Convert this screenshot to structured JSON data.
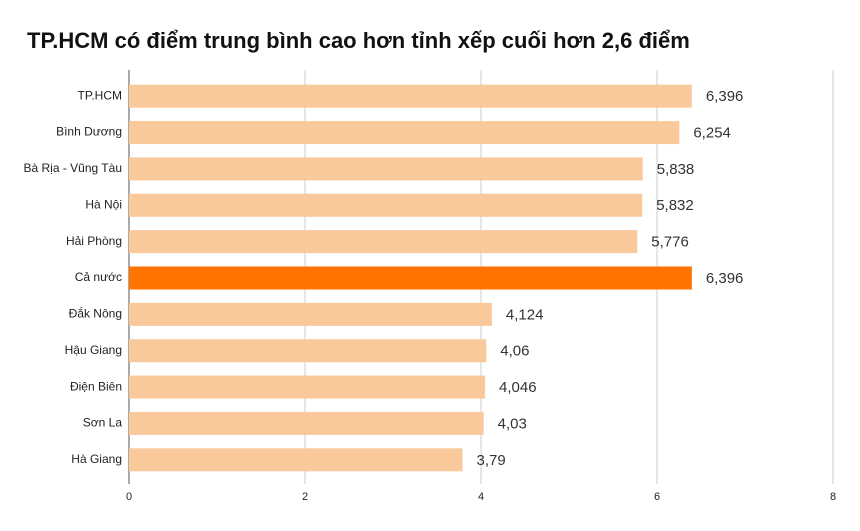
{
  "chart_data": {
    "type": "bar",
    "orientation": "horizontal",
    "title": "TP.HCM có điểm trung bình cao hơn tỉnh xếp cuối hơn 2,6 điểm",
    "categories": [
      "TP.HCM",
      "Bình Dương",
      "Bà Rịa - Vũng Tàu",
      "Hà Nội",
      "Hải Phòng",
      "Cả nước",
      "Đắk Nông",
      "Hậu Giang",
      "Điện Biên",
      "Sơn La",
      "Hà Giang"
    ],
    "values": [
      6.396,
      6.254,
      5.838,
      5.832,
      5.776,
      6.396,
      4.124,
      4.06,
      4.046,
      4.03,
      3.79
    ],
    "value_labels": [
      "6,396",
      "6,254",
      "5,838",
      "5,832",
      "5,776",
      "6,396",
      "4,124",
      "4,06",
      "4,046",
      "4,03",
      "3,79"
    ],
    "colors": [
      "#f9c99b",
      "#f9c99b",
      "#f9c99b",
      "#f9c99b",
      "#f9c99b",
      "#ff7300",
      "#f9c99b",
      "#f9c99b",
      "#f9c99b",
      "#f9c99b",
      "#f9c99b"
    ],
    "xlim": [
      0,
      8
    ],
    "xticks": [
      0,
      2,
      4,
      6,
      8
    ],
    "grid": true
  }
}
